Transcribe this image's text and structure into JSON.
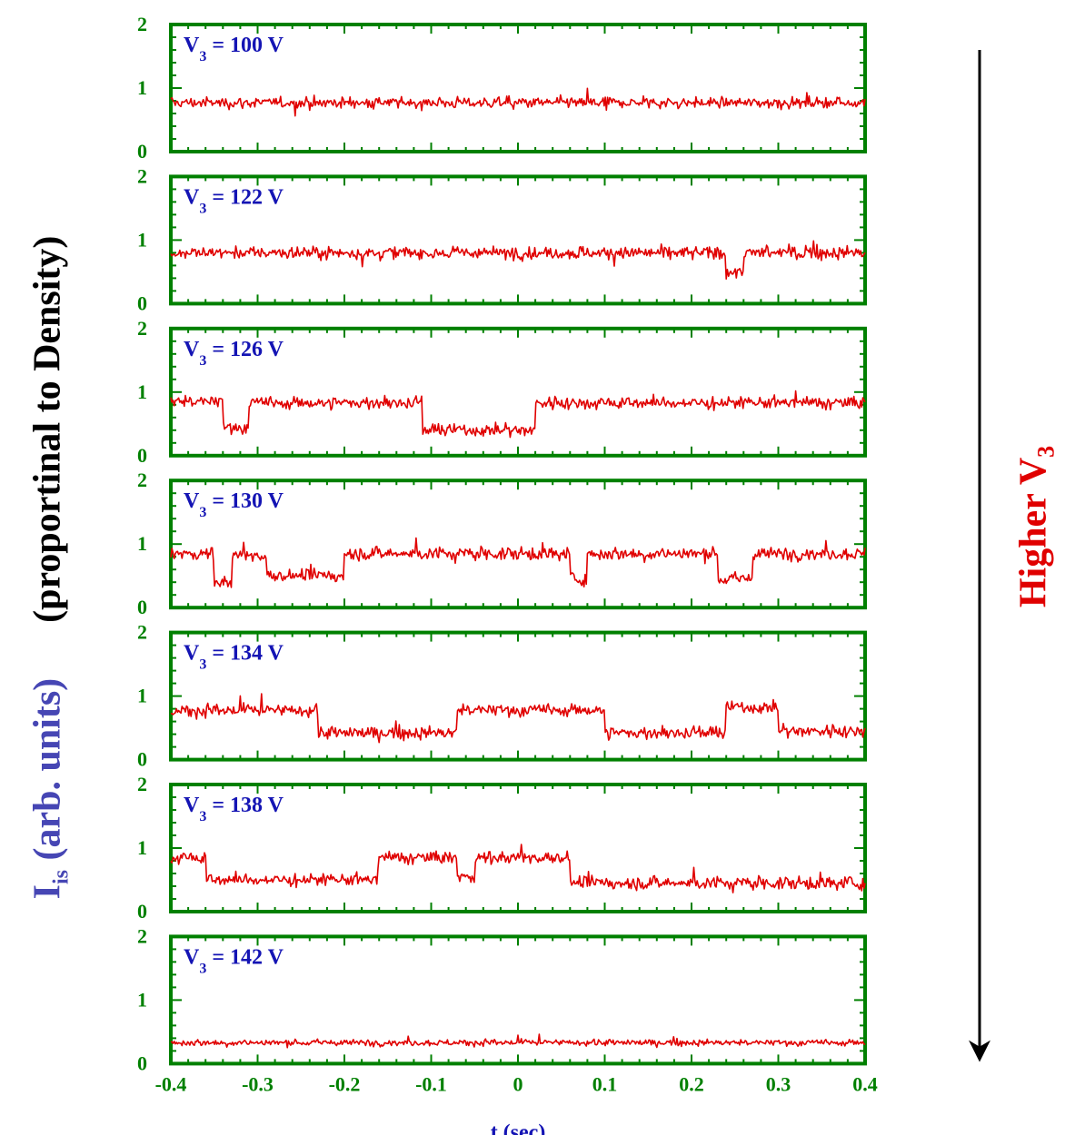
{
  "chart_data": {
    "type": "line",
    "y_axis_label": {
      "symbol": "I",
      "symbol_subscript": "is",
      "units_text": "(arb. units)",
      "qualifier": "(proportinal to Density)"
    },
    "xlabel": "t (sec)",
    "xlim": [
      -0.4,
      0.4
    ],
    "ylim": [
      0,
      2
    ],
    "x_ticks": [
      "-0.4",
      "-0.3",
      "-0.2",
      "-0.1",
      "0",
      "0.1",
      "0.2",
      "0.3",
      "0.4"
    ],
    "y_ticks": [
      "0",
      "1",
      "2"
    ],
    "arrow_label": {
      "text": "Higher V",
      "subscript": "3"
    },
    "panel_label_format": {
      "prefix": "V",
      "subscript": "3",
      "unit": "V"
    },
    "panels": [
      {
        "label": "V3 = 100 V",
        "v3": "100",
        "levels": [
          [
            -0.4,
            0.4,
            0.77
          ]
        ],
        "noise": 0.06
      },
      {
        "label": "V3 = 122 V",
        "v3": "122",
        "levels": [
          [
            -0.4,
            0.24,
            0.8
          ],
          [
            0.24,
            0.26,
            0.5
          ],
          [
            0.26,
            0.4,
            0.8
          ]
        ],
        "noise": 0.07
      },
      {
        "label": "V3 = 126 V",
        "v3": "126",
        "levels": [
          [
            -0.4,
            -0.34,
            0.85
          ],
          [
            -0.34,
            -0.31,
            0.45
          ],
          [
            -0.31,
            -0.11,
            0.83
          ],
          [
            -0.11,
            0.02,
            0.4
          ],
          [
            0.02,
            0.4,
            0.83
          ]
        ],
        "noise": 0.07
      },
      {
        "label": "V3 = 130 V",
        "v3": "130",
        "levels": [
          [
            -0.4,
            -0.35,
            0.85
          ],
          [
            -0.35,
            -0.33,
            0.4
          ],
          [
            -0.33,
            -0.29,
            0.82
          ],
          [
            -0.29,
            -0.24,
            0.5
          ],
          [
            -0.24,
            -0.2,
            0.5
          ],
          [
            -0.2,
            0.06,
            0.85
          ],
          [
            0.06,
            0.08,
            0.45
          ],
          [
            0.08,
            0.23,
            0.85
          ],
          [
            0.23,
            0.27,
            0.45
          ],
          [
            0.27,
            0.4,
            0.85
          ]
        ],
        "noise": 0.07
      },
      {
        "label": "V3 = 134 V",
        "v3": "134",
        "levels": [
          [
            -0.4,
            -0.23,
            0.77
          ],
          [
            -0.23,
            -0.07,
            0.42
          ],
          [
            -0.07,
            0.1,
            0.78
          ],
          [
            0.1,
            0.24,
            0.42
          ],
          [
            0.24,
            0.3,
            0.82
          ],
          [
            0.3,
            0.4,
            0.45
          ]
        ],
        "noise": 0.07
      },
      {
        "label": "V3 = 138 V",
        "v3": "138",
        "levels": [
          [
            -0.4,
            -0.36,
            0.85
          ],
          [
            -0.36,
            -0.16,
            0.5
          ],
          [
            -0.16,
            -0.07,
            0.85
          ],
          [
            -0.07,
            -0.05,
            0.55
          ],
          [
            -0.05,
            0.06,
            0.85
          ],
          [
            0.06,
            0.4,
            0.45
          ]
        ],
        "noise": 0.07
      },
      {
        "label": "V3 = 142 V",
        "v3": "142",
        "levels": [
          [
            -0.4,
            0.4,
            0.33
          ]
        ],
        "noise": 0.035
      }
    ],
    "colors": {
      "axes": "#008000",
      "trace": "#e00000",
      "panel_label": "#1414b4",
      "arrow": "#000000"
    }
  }
}
